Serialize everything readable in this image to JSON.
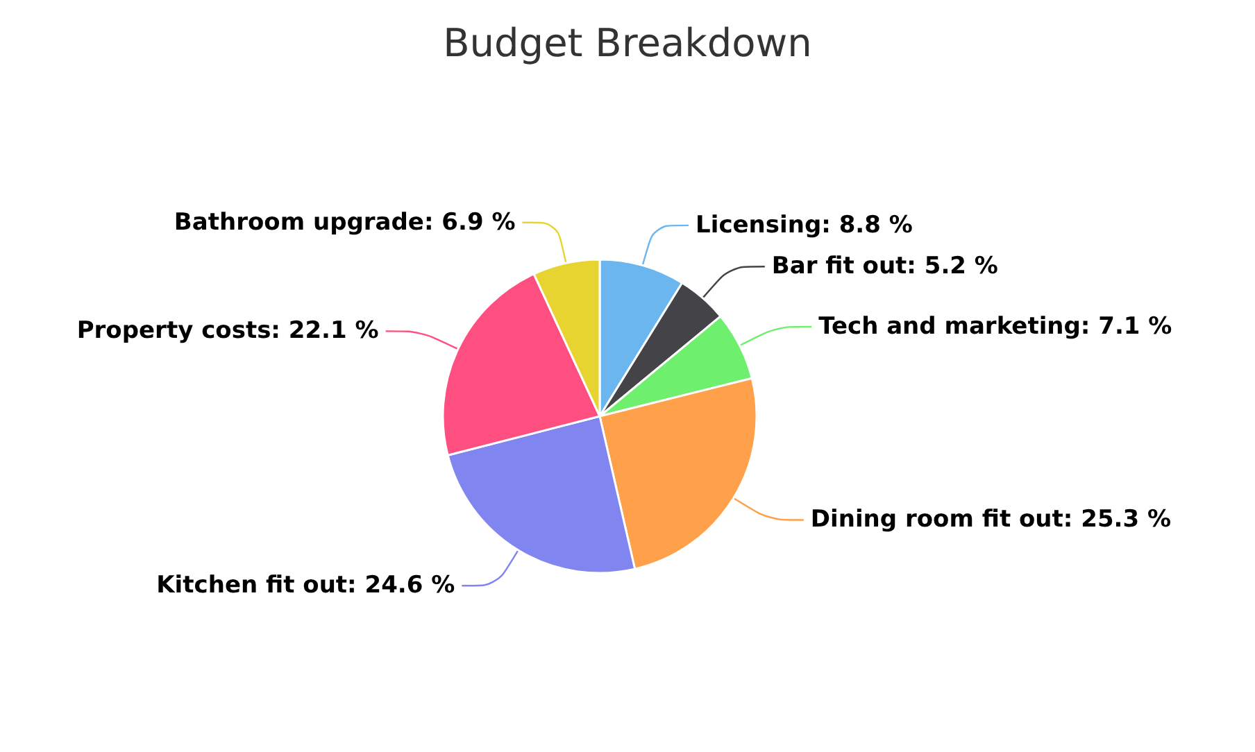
{
  "chart_data": {
    "type": "pie",
    "title": "Budget Breakdown",
    "categories": [
      "Licensing",
      "Bar fit out",
      "Tech and marketing",
      "Dining room fit out",
      "Kitchen fit out",
      "Property costs",
      "Bathroom upgrade"
    ],
    "values": [
      8.8,
      5.2,
      7.1,
      25.3,
      24.6,
      22.1,
      6.9
    ],
    "value_labels": [
      "8.8 %",
      "5.2 %",
      "7.1 %",
      "25.3 %",
      "24.6 %",
      "22.1 %",
      "6.9 %"
    ],
    "colors": [
      "#6cb6f0",
      "#434348",
      "#6ef06e",
      "#ffa04a",
      "#8085ef",
      "#ff4f80",
      "#e8d430"
    ],
    "legend": false
  }
}
